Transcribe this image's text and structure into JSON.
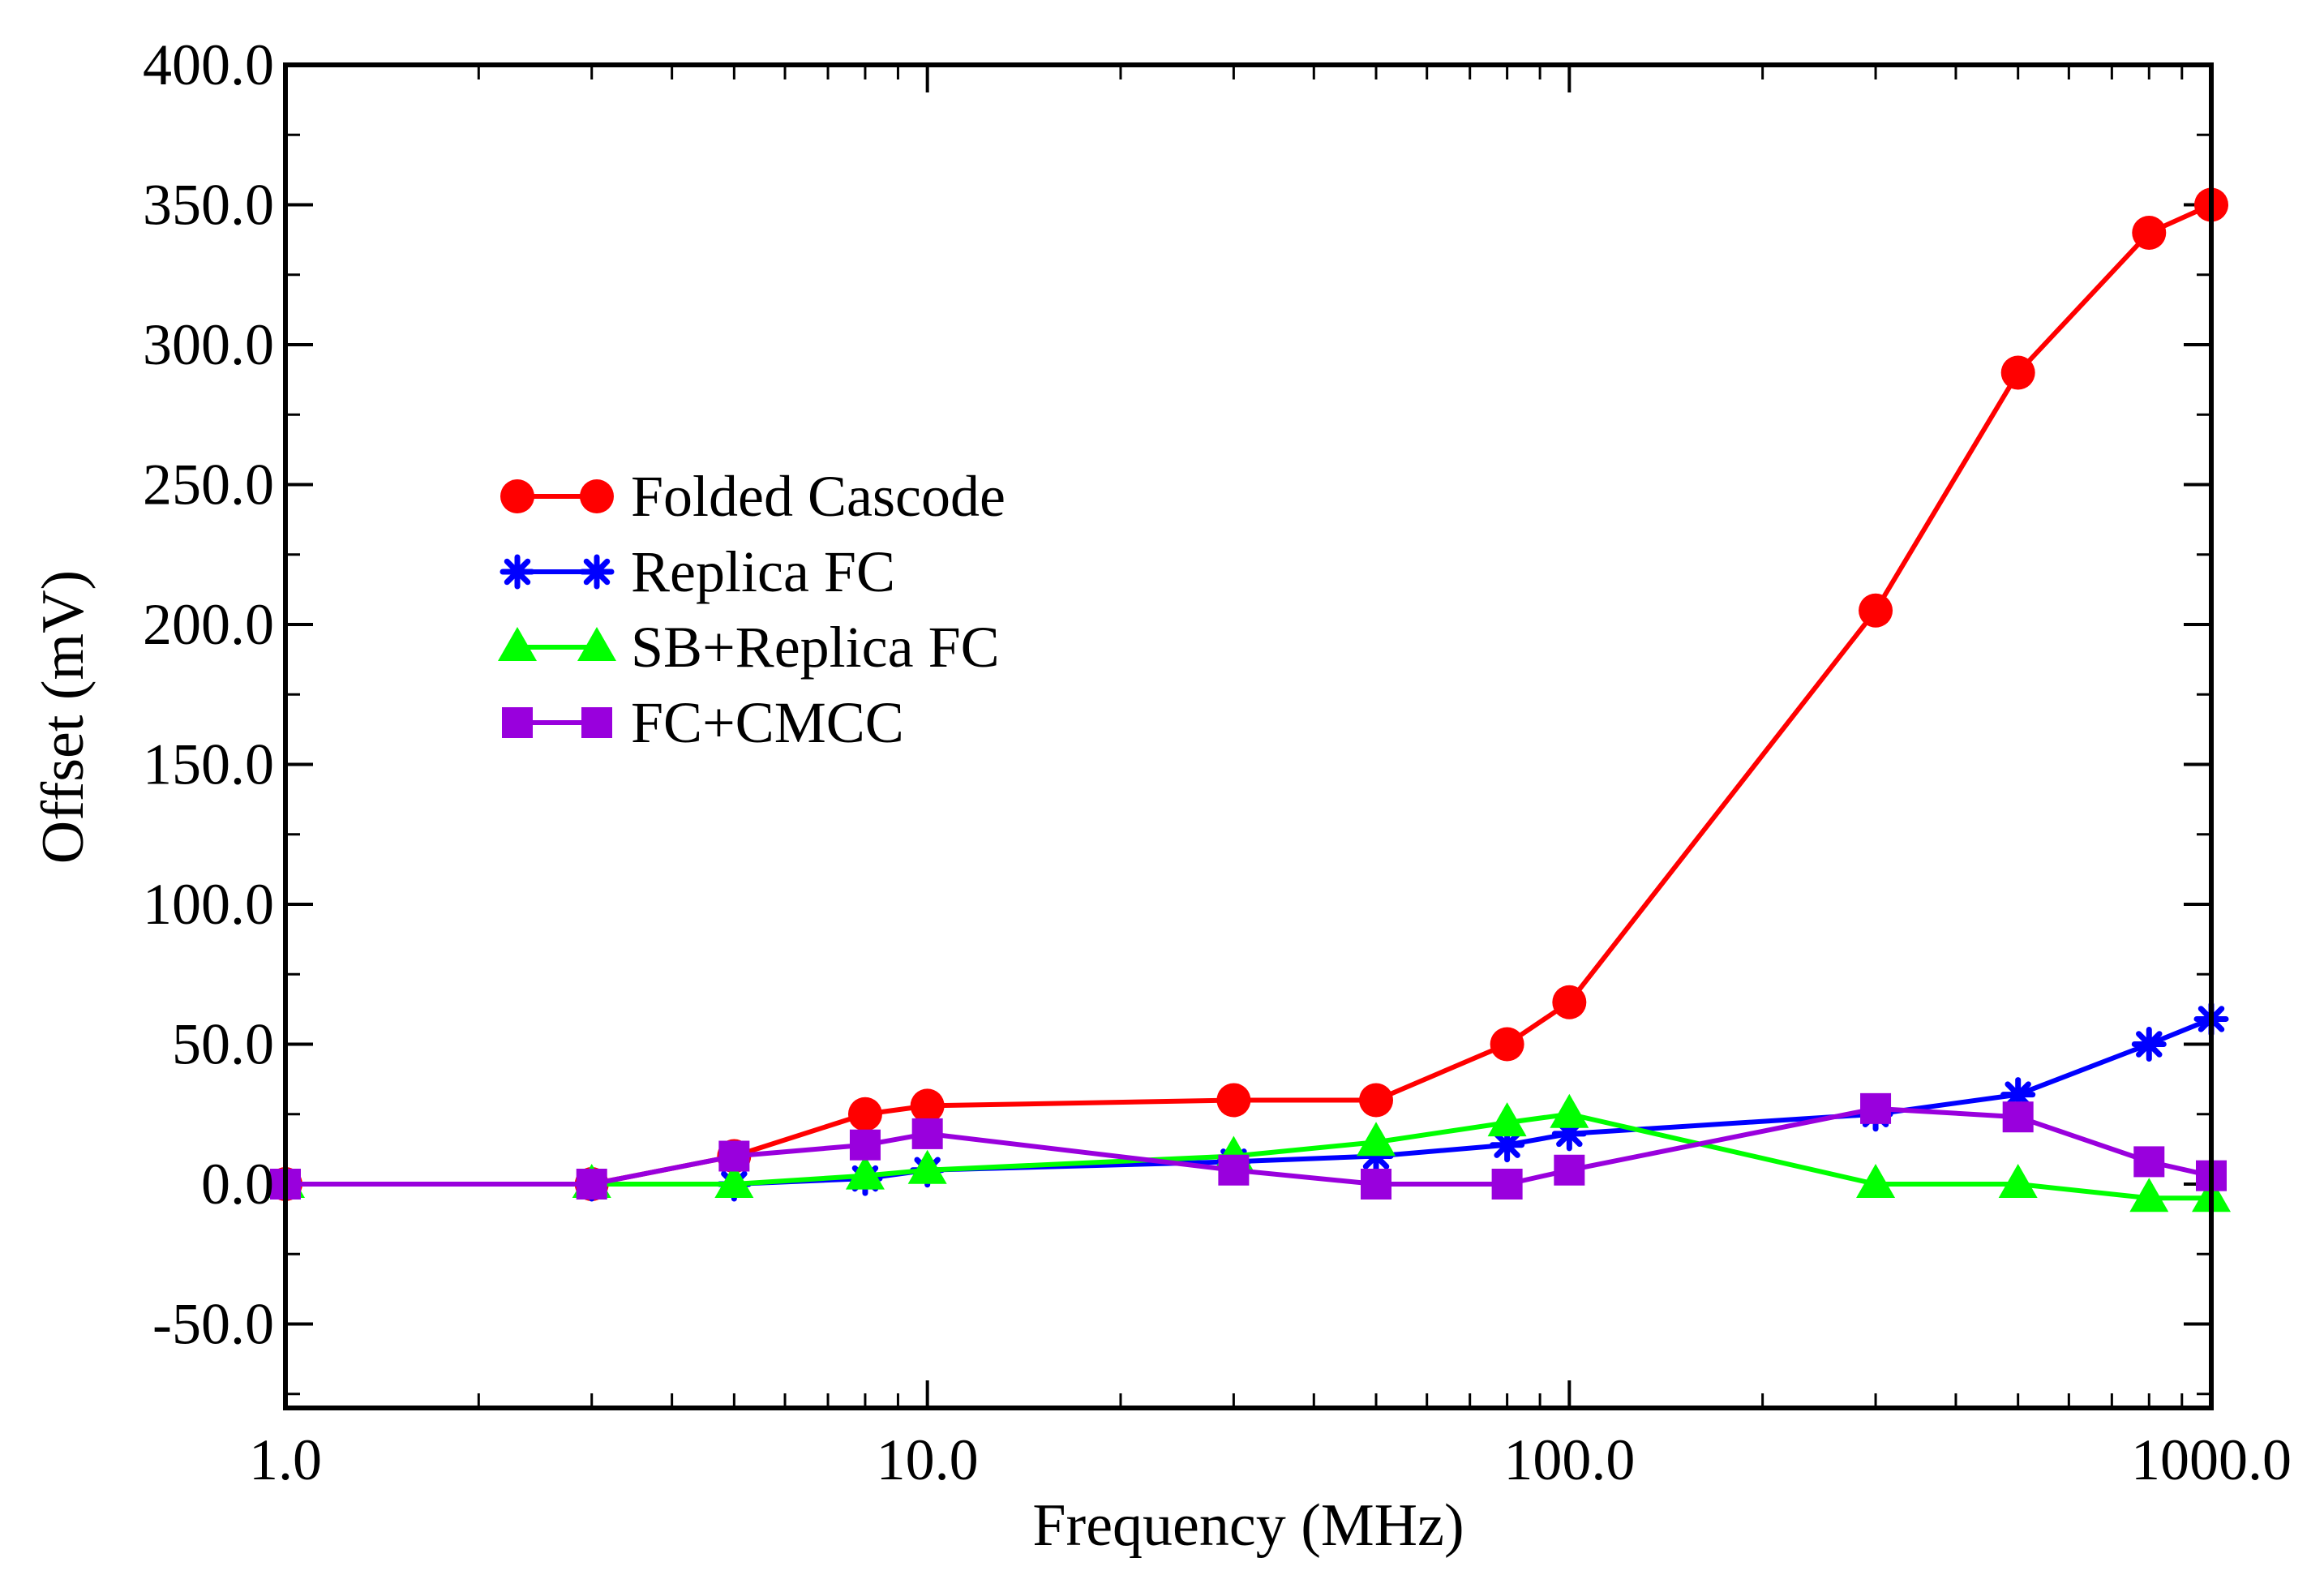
{
  "chart_data": {
    "type": "line",
    "title": "",
    "xlabel": "Frequency (MHz)",
    "ylabel": "Offset (mV)",
    "xscale": "log",
    "xlim": [
      1.0,
      1000.0
    ],
    "ylim": [
      -80.0,
      400.0
    ],
    "x_ticks": [
      1.0,
      10.0,
      100.0,
      1000.0
    ],
    "x_tick_labels": [
      "1.0",
      "10.0",
      "100.0",
      "1000.0"
    ],
    "y_ticks": [
      -50.0,
      0.0,
      50.0,
      100.0,
      150.0,
      200.0,
      250.0,
      300.0,
      350.0,
      400.0
    ],
    "y_tick_labels": [
      "-50.0",
      "0.0",
      "50.0",
      "100.0",
      "150.0",
      "200.0",
      "250.0",
      "300.0",
      "350.0",
      "400.0"
    ],
    "legend_position": "left-center",
    "series": [
      {
        "name": "Folded Cascode",
        "color": "#ff0000",
        "marker": "circle",
        "x": [
          1,
          3,
          5,
          8,
          10,
          30,
          50,
          80,
          100,
          300,
          500,
          800,
          1000
        ],
        "values": [
          0,
          0,
          10,
          25,
          28,
          30,
          30,
          50,
          65,
          205,
          290,
          340,
          350
        ]
      },
      {
        "name": "Replica FC",
        "color": "#0000ff",
        "marker": "star",
        "x": [
          1,
          3,
          5,
          8,
          10,
          30,
          50,
          80,
          100,
          300,
          500,
          800,
          1000
        ],
        "values": [
          0,
          0,
          0,
          2,
          5,
          8,
          10,
          14,
          18,
          25,
          32,
          50,
          59
        ]
      },
      {
        "name": "SB+Replica FC",
        "color": "#00ff00",
        "marker": "triangle",
        "x": [
          1,
          3,
          5,
          8,
          10,
          30,
          50,
          80,
          100,
          300,
          500,
          800,
          1000
        ],
        "values": [
          0,
          0,
          0,
          3,
          5,
          10,
          15,
          22,
          25,
          0,
          0,
          -5,
          -5
        ]
      },
      {
        "name": "FC+CMCC",
        "color": "#9900dd",
        "marker": "square",
        "x": [
          1,
          3,
          5,
          8,
          10,
          30,
          50,
          80,
          100,
          300,
          500,
          800,
          1000
        ],
        "values": [
          0,
          0,
          10,
          14,
          18,
          5,
          0,
          0,
          5,
          27,
          24,
          8,
          3
        ]
      }
    ]
  }
}
